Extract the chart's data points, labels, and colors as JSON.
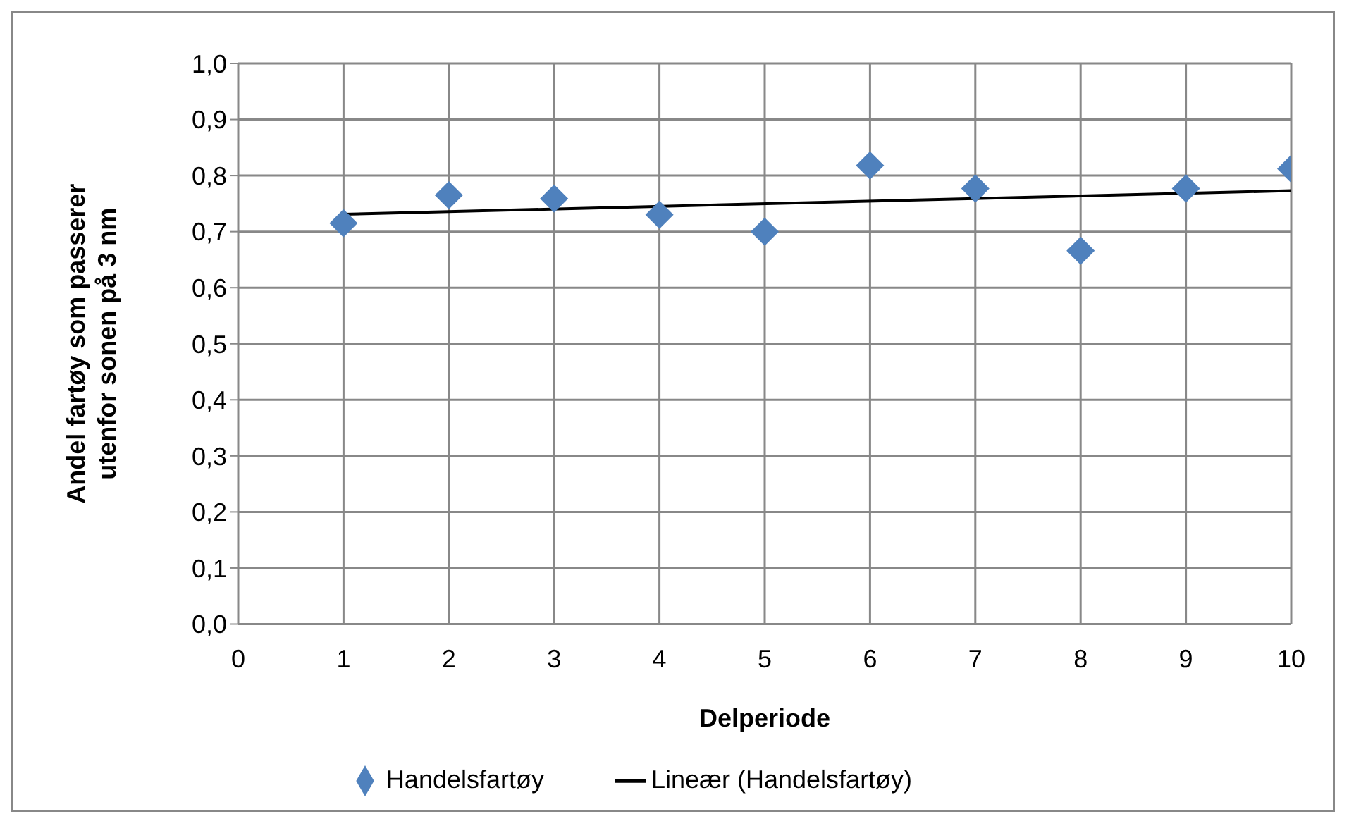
{
  "chart_data": {
    "type": "scatter",
    "xlabel": "Delperiode",
    "ylabel": "Andel fartøy som passerer utenfor sonen på 3 nm",
    "x": [
      1,
      2,
      3,
      4,
      5,
      6,
      7,
      8,
      9,
      10
    ],
    "series": [
      {
        "name": "Handelsfartøy",
        "color": "#4f81bd",
        "marker": "diamond",
        "values": [
          0.715,
          0.765,
          0.759,
          0.73,
          0.7,
          0.818,
          0.777,
          0.666,
          0.777,
          0.812
        ]
      },
      {
        "name": "Lineær (Handelsfartøy)",
        "type": "line",
        "color": "#000000",
        "marker": "none",
        "line_style": "solid",
        "x": [
          1,
          10
        ],
        "values": [
          0.731,
          0.773
        ]
      }
    ],
    "xlim": [
      0,
      10
    ],
    "xticks": [
      0,
      1,
      2,
      3,
      4,
      5,
      6,
      7,
      8,
      9,
      10
    ],
    "ylim": [
      0,
      1
    ],
    "yticks": [
      {
        "value": 0,
        "label": "0,0"
      },
      {
        "value": 0.1,
        "label": "0,1"
      },
      {
        "value": 0.2,
        "label": "0,2"
      },
      {
        "value": 0.3,
        "label": "0,3"
      },
      {
        "value": 0.4,
        "label": "0,4"
      },
      {
        "value": 0.5,
        "label": "0,5"
      },
      {
        "value": 0.6,
        "label": "0,6"
      },
      {
        "value": 0.7,
        "label": "0,7"
      },
      {
        "value": 0.8,
        "label": "0,8"
      },
      {
        "value": 0.9,
        "label": "0,9"
      },
      {
        "value": 1,
        "label": "1,0"
      }
    ],
    "grid": true,
    "legend": "bottom"
  }
}
